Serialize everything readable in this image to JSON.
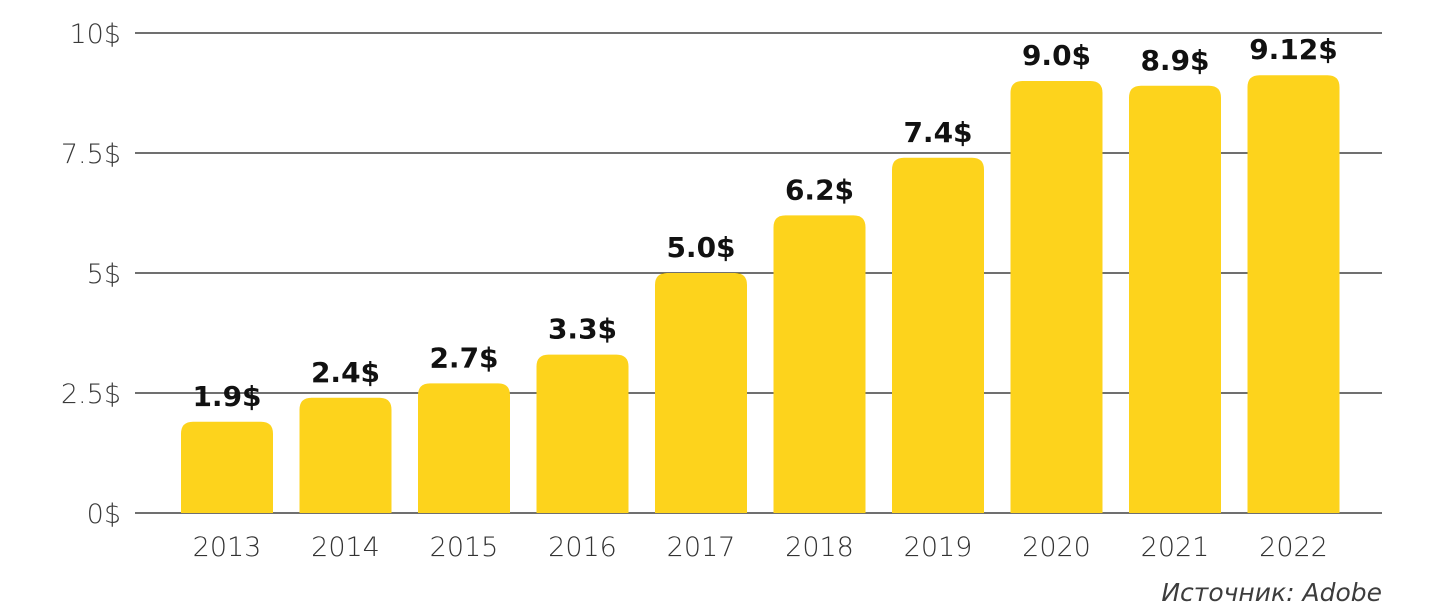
{
  "chart_data": {
    "type": "bar",
    "categories": [
      "2013",
      "2014",
      "2015",
      "2016",
      "2017",
      "2018",
      "2019",
      "2020",
      "2021",
      "2022"
    ],
    "values": [
      1.9,
      2.4,
      2.7,
      3.3,
      5.0,
      6.2,
      7.4,
      9.0,
      8.9,
      9.12
    ],
    "data_labels": [
      "1.9$",
      "2.4$",
      "2.7$",
      "3.3$",
      "5.0$",
      "6.2$",
      "7.4$",
      "9.0$",
      "8.9$",
      "9.12$"
    ],
    "y_ticks": [
      {
        "value": 0,
        "label": "0$"
      },
      {
        "value": 2.5,
        "label": "2.5$"
      },
      {
        "value": 5,
        "label": "5$"
      },
      {
        "value": 7.5,
        "label": "7.5$"
      },
      {
        "value": 10,
        "label": "10$"
      }
    ],
    "ylim": [
      0,
      10
    ],
    "grid": true,
    "legend": "none",
    "colors": {
      "bar": "#FDD31C",
      "grid": "#1a1a1a",
      "label": "#111111"
    }
  },
  "source_note": "Источник: Adobe"
}
